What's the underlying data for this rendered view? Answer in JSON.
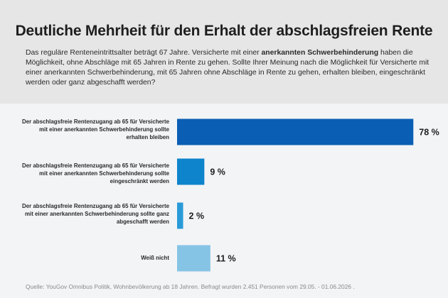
{
  "header": {
    "title": "Deutliche Mehrheit für den Erhalt der abschlagsfreien Rente",
    "intro_part1": "Das reguläre Renteneintrittsalter beträgt 67 Jahre. Versicherte mit einer ",
    "intro_bold": "anerkannten Schwerbehinderung",
    "intro_part2": " haben die Möglichkeit, ohne Abschläge mit 65 Jahren in Rente zu gehen. Sollte Ihrer Meinung nach die Möglichkeit für Versicherte mit einer anerkannten Schwerbehinderung, mit 65 Jahren ohne Abschläge in Rente zu gehen, erhalten bleiben, eingeschränkt werden oder ganz abgeschafft werden?"
  },
  "chart_data": {
    "type": "bar",
    "orientation": "horizontal",
    "categories": [
      "Der abschlagsfreie Rentenzugang ab 65 für Versicherte mit einer anerkannten Schwerbehinderung sollte erhalten bleiben",
      "Der abschlagsfreie Rentenzugang ab 65 für Versicherte mit einer anerkannten Schwerbehinderung sollte eingeschränkt werden",
      "Der abschlagsfreie Rentenzugang ab 65 für Versicherte mit einer anerkannten Schwerbehinderung sollte ganz abgeschafft werden",
      "Weiß nicht"
    ],
    "values": [
      78,
      9,
      2,
      11
    ],
    "value_labels": [
      "78 %",
      "9 %",
      "2 %",
      "11 %"
    ],
    "colors": [
      "#0a5fb4",
      "#0d84cc",
      "#2a9ad8",
      "#86c4e6"
    ],
    "xlim": [
      0,
      100
    ],
    "grid": false,
    "legend": "none"
  },
  "footer": {
    "source": "Quelle: YouGov Omnibus Politik, Wohnbevölkerung ab 18 Jahren. Befragt wurden 2.451 Personen vom 29.05. - 01.06.2026 ."
  }
}
